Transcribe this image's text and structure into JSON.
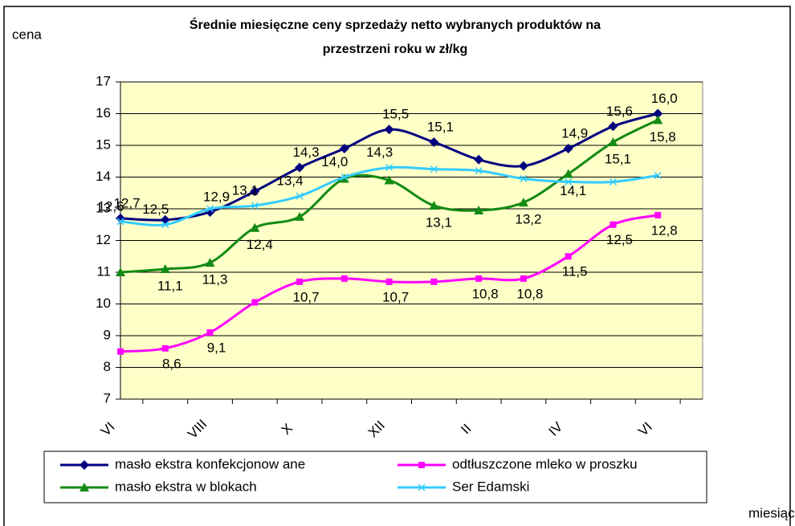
{
  "chart_data": {
    "type": "line",
    "title": [
      "Średnie miesięczne ceny sprzedaży netto  wybranych produktów na",
      "przestrzeni roku w zł/kg"
    ],
    "y_label": "cena",
    "x_label": "miesiąc",
    "categories": [
      "VI",
      null,
      "VIII",
      null,
      "X",
      null,
      "XII",
      null,
      "II",
      null,
      "IV",
      null,
      "VI"
    ],
    "ylim": [
      7,
      17
    ],
    "yticks": [
      7,
      8,
      9,
      10,
      11,
      12,
      13,
      14,
      15,
      16,
      17
    ],
    "grid": true,
    "legend": "bottom",
    "series": [
      {
        "name": "masło ekstra konfekcjonow ane",
        "color": "#000080",
        "marker": "diamond",
        "values": [
          12.7,
          12.65,
          12.9,
          13.55,
          14.3,
          14.9,
          15.5,
          15.1,
          14.55,
          14.35,
          14.9,
          15.6,
          16.0
        ],
        "value_labels": [
          "12,7",
          null,
          "12,9",
          null,
          "14,3",
          null,
          "15,5",
          "15,1",
          null,
          null,
          "14,9",
          "15,6",
          "16,0"
        ]
      },
      {
        "name": "odtłuszczone mleko w  proszku",
        "color": "#ff00ff",
        "marker": "square",
        "values": [
          8.5,
          8.6,
          9.1,
          10.05,
          10.7,
          10.8,
          10.7,
          10.7,
          10.8,
          10.8,
          11.5,
          12.5,
          12.8
        ],
        "value_labels": [
          null,
          "8,6",
          "9,1",
          null,
          "10,7",
          null,
          "10,7",
          null,
          "10,8",
          "10,8",
          "11,5",
          "12,5",
          "12,8"
        ]
      },
      {
        "name": "masło ekstra w  blokach",
        "color": "#138a13",
        "marker": "triangle",
        "values": [
          11.0,
          11.1,
          11.3,
          12.4,
          12.75,
          13.95,
          13.9,
          13.1,
          12.95,
          13.2,
          14.1,
          15.1,
          15.8
        ],
        "value_labels": [
          null,
          "11,1",
          "11,3",
          "12,4",
          null,
          null,
          null,
          "13,1",
          null,
          "13,2",
          "14,1",
          "15,1",
          "15,8"
        ]
      },
      {
        "name": "Ser Edamski",
        "color": "#33ccff",
        "marker": "x",
        "values": [
          12.6,
          12.5,
          13.0,
          13.1,
          13.4,
          14.0,
          14.3,
          14.25,
          14.2,
          13.95,
          13.85,
          13.85,
          14.05
        ],
        "value_labels": [
          "12,6",
          "12,5",
          null,
          "13,1",
          "13,4",
          "14,0",
          "14,3",
          null,
          null,
          null,
          null,
          null,
          null
        ]
      }
    ]
  }
}
